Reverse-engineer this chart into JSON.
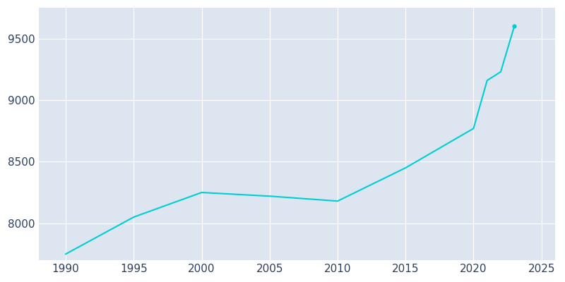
{
  "years": [
    1990,
    1995,
    2000,
    2005,
    2010,
    2015,
    2020,
    2021,
    2022,
    2023
  ],
  "population": [
    7750,
    8050,
    8250,
    8220,
    8180,
    8450,
    8770,
    9160,
    9230,
    9600
  ],
  "line_color": "#00CED1",
  "bg_color": "#ffffff",
  "plot_bg_color": "#dde6f0",
  "tick_color": "#2d3e5f",
  "grid_color": "#ffffff",
  "xlim": [
    1988,
    2026
  ],
  "ylim": [
    7700,
    9750
  ],
  "xticks": [
    1990,
    1995,
    2000,
    2005,
    2010,
    2015,
    2020,
    2025
  ],
  "yticks": [
    8000,
    8500,
    9000,
    9500
  ],
  "linewidth": 1.5,
  "markersize": 3.5
}
